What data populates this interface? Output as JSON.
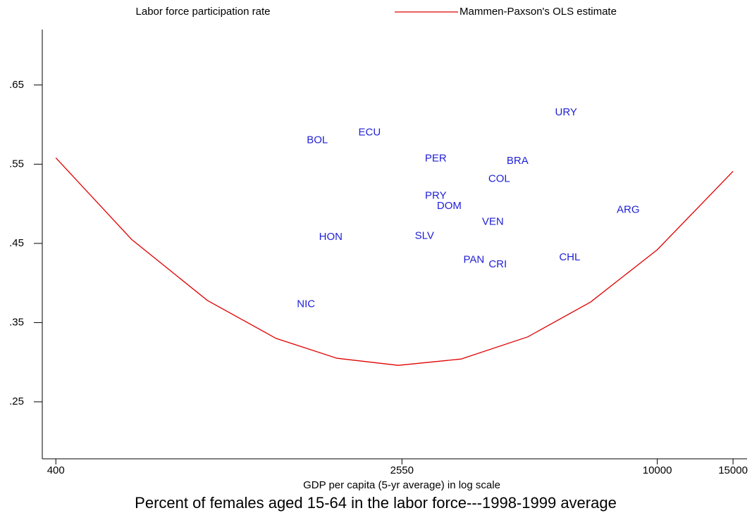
{
  "chart_data": {
    "type": "scatter",
    "title": "Percent of females aged 15-64 in the labor force---1998-1999 average",
    "x_label": "GDP per capita (5-yr average) in log scale",
    "xscale": "log",
    "xlim": [
      372,
      16170
    ],
    "xticks": [
      400,
      2550,
      10000,
      15000
    ],
    "ylim": [
      0.178,
      0.72
    ],
    "yticks": [
      {
        "value": 0.25,
        "label": ".25"
      },
      {
        "value": 0.35,
        "label": ".35"
      },
      {
        "value": 0.45,
        "label": ".45"
      },
      {
        "value": 0.55,
        "label": ".55"
      },
      {
        "value": 0.65,
        "label": ".65"
      }
    ],
    "legend": "top",
    "series": [
      {
        "name": "Labor force participation rate",
        "type": "labels",
        "color": "#1f1fd6",
        "labels": [
          "BOL",
          "ECU",
          "PER",
          "BRA",
          "COL",
          "PRY",
          "DOM",
          "VEN",
          "ARG",
          "HON",
          "SLV",
          "PAN",
          "CRI",
          "CHL",
          "URY",
          "NIC"
        ],
        "x": [
          1621,
          2144,
          3056,
          4733,
          4292,
          3056,
          3284,
          4148,
          8556,
          1742,
          2876,
          3747,
          4258,
          6258,
          6139,
          1526
        ],
        "values": [
          0.58,
          0.59,
          0.557,
          0.554,
          0.531,
          0.51,
          0.497,
          0.477,
          0.492,
          0.458,
          0.459,
          0.429,
          0.423,
          0.432,
          0.615,
          0.373
        ]
      },
      {
        "name": "Mammen-Paxson's OLS estimate",
        "type": "line",
        "color": "#e00000",
        "x": [
          400,
          600,
          900,
          1300,
          1800,
          2500,
          3500,
          5000,
          7000,
          10000,
          15000
        ],
        "values": [
          0.558,
          0.455,
          0.378,
          0.33,
          0.305,
          0.296,
          0.304,
          0.332,
          0.376,
          0.442,
          0.541
        ]
      }
    ]
  }
}
